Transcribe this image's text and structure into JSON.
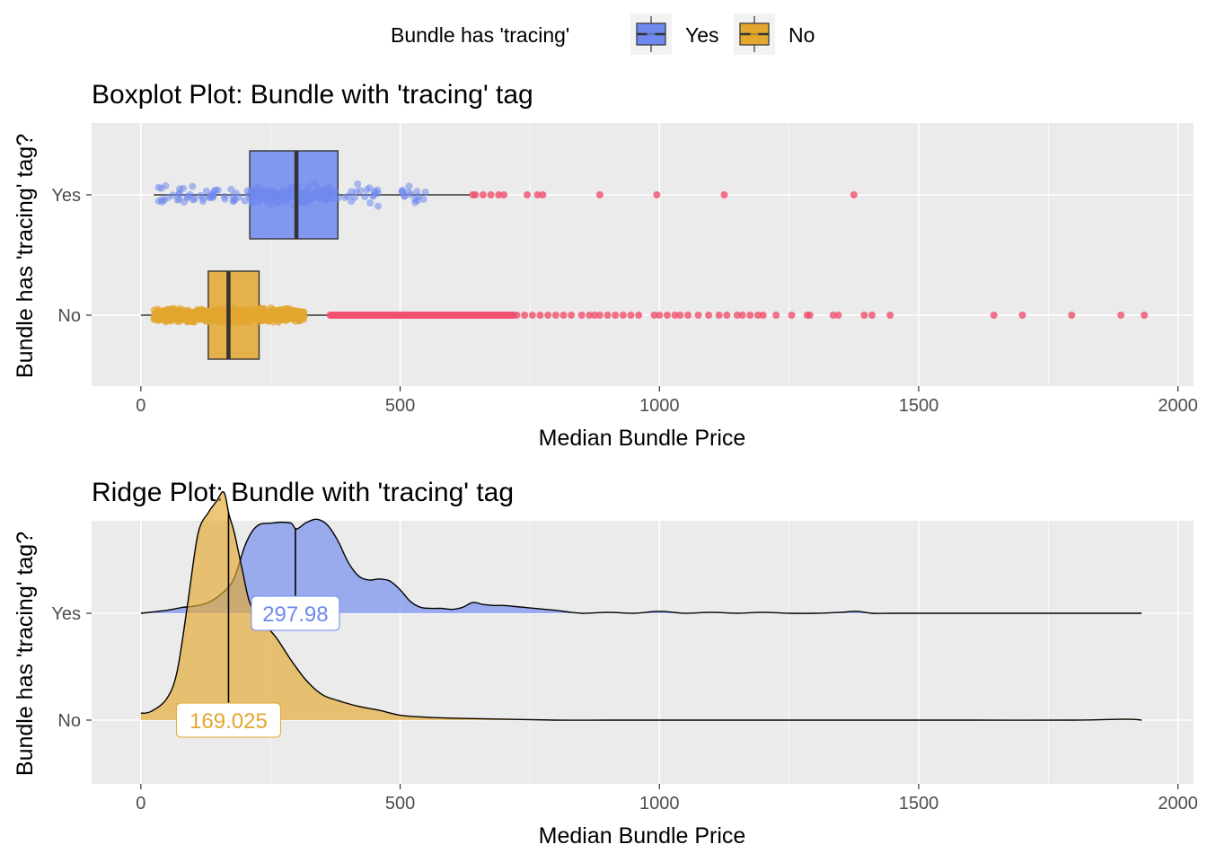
{
  "legend": {
    "title": "Bundle has 'tracing'",
    "items": [
      {
        "label": "Yes",
        "color": "#6f89ee"
      },
      {
        "label": "No",
        "color": "#e3a72f"
      }
    ]
  },
  "colors": {
    "yes": "#6f89ee",
    "no": "#e3a72f",
    "outlier": "#f0506e",
    "panel": "#ebebeb",
    "grid": "#ffffff"
  },
  "chart_data": [
    {
      "type": "boxplot",
      "title": "Boxplot Plot: Bundle with 'tracing' tag",
      "xlabel": "Median Bundle Price",
      "ylabel": "Bundle has 'tracing' tag?",
      "xlim": [
        -95,
        2030
      ],
      "x_ticks": [
        0,
        500,
        1000,
        1500,
        2000
      ],
      "x_tick_labels": [
        "0",
        "500",
        "1000",
        "1500",
        "2000"
      ],
      "categories": [
        "Yes",
        "No"
      ],
      "grid": true,
      "series": [
        {
          "name": "Yes",
          "whisker_low": 25,
          "q1": 210,
          "median": 300,
          "q3": 380,
          "whisker_high": 635,
          "jitter_range": [
            30,
            550
          ],
          "outliers": [
            640,
            645,
            660,
            675,
            690,
            700,
            745,
            765,
            775,
            885,
            995,
            1125,
            1375
          ]
        },
        {
          "name": "No",
          "whisker_low": 0,
          "q1": 130,
          "median": 169,
          "q3": 228,
          "whisker_high": 365,
          "jitter_range": [
            25,
            315
          ],
          "outliers_dense_range": [
            365,
            720
          ],
          "outliers": [
            725,
            740,
            755,
            770,
            785,
            800,
            815,
            830,
            850,
            865,
            875,
            885,
            900,
            915,
            930,
            945,
            960,
            990,
            1000,
            1015,
            1030,
            1040,
            1055,
            1075,
            1095,
            1115,
            1130,
            1150,
            1160,
            1175,
            1190,
            1200,
            1225,
            1255,
            1285,
            1290,
            1335,
            1345,
            1395,
            1410,
            1445,
            1645,
            1700,
            1795,
            1890,
            1935
          ]
        }
      ]
    },
    {
      "type": "ridge",
      "title": "Ridge Plot: Bundle with 'tracing' tag",
      "xlabel": "Median Bundle Price",
      "ylabel": "Bundle has 'tracing' tag?",
      "xlim": [
        -95,
        2030
      ],
      "x_ticks": [
        0,
        500,
        1000,
        1500,
        2000
      ],
      "x_tick_labels": [
        "0",
        "500",
        "1000",
        "1500",
        "2000"
      ],
      "categories": [
        "Yes",
        "No"
      ],
      "grid": true,
      "series": [
        {
          "name": "Yes",
          "median": 297.98,
          "median_label": "297.98",
          "x": [
            0,
            50,
            80,
            100,
            130,
            160,
            180,
            200,
            215,
            230,
            250,
            270,
            290,
            300,
            320,
            340,
            360,
            380,
            400,
            420,
            440,
            460,
            480,
            500,
            520,
            540,
            560,
            580,
            600,
            620,
            640,
            660,
            680,
            700,
            720,
            740,
            760,
            780,
            800,
            850,
            900,
            950,
            1000,
            1050,
            1100,
            1150,
            1200,
            1250,
            1300,
            1350,
            1380,
            1410,
            1450,
            1500,
            1600,
            1700,
            1800,
            1900,
            1930
          ],
          "density": [
            0.0,
            0.03,
            0.06,
            0.07,
            0.11,
            0.22,
            0.36,
            0.68,
            0.84,
            0.91,
            0.92,
            0.93,
            0.92,
            0.86,
            0.93,
            0.96,
            0.9,
            0.74,
            0.52,
            0.38,
            0.34,
            0.35,
            0.33,
            0.24,
            0.12,
            0.06,
            0.05,
            0.05,
            0.04,
            0.06,
            0.11,
            0.09,
            0.08,
            0.08,
            0.07,
            0.06,
            0.05,
            0.04,
            0.03,
            0.0,
            0.01,
            0.0,
            0.02,
            0.0,
            0.01,
            0.0,
            0.01,
            0.0,
            0.0,
            0.01,
            0.02,
            0.0,
            0.0,
            0.0,
            0.0,
            0.0,
            0.0,
            0.0,
            0.0
          ]
        },
        {
          "name": "No",
          "median": 169.025,
          "median_label": "169.025",
          "x": [
            0,
            20,
            50,
            70,
            90,
            110,
            130,
            145,
            160,
            170,
            180,
            195,
            210,
            230,
            260,
            290,
            320,
            350,
            380,
            420,
            460,
            500,
            550,
            600,
            700,
            800,
            900,
            1000,
            1200,
            1400,
            1600,
            1800,
            1900,
            1930
          ],
          "density": [
            0.07,
            0.09,
            0.22,
            0.5,
            1.18,
            1.9,
            2.12,
            2.23,
            2.33,
            2.1,
            1.92,
            1.55,
            1.2,
            1.03,
            0.85,
            0.61,
            0.4,
            0.26,
            0.2,
            0.14,
            0.1,
            0.05,
            0.03,
            0.02,
            0.01,
            0.0,
            0.0,
            0.0,
            0.0,
            0.0,
            0.0,
            0.0,
            0.01,
            0.0
          ]
        }
      ]
    }
  ]
}
